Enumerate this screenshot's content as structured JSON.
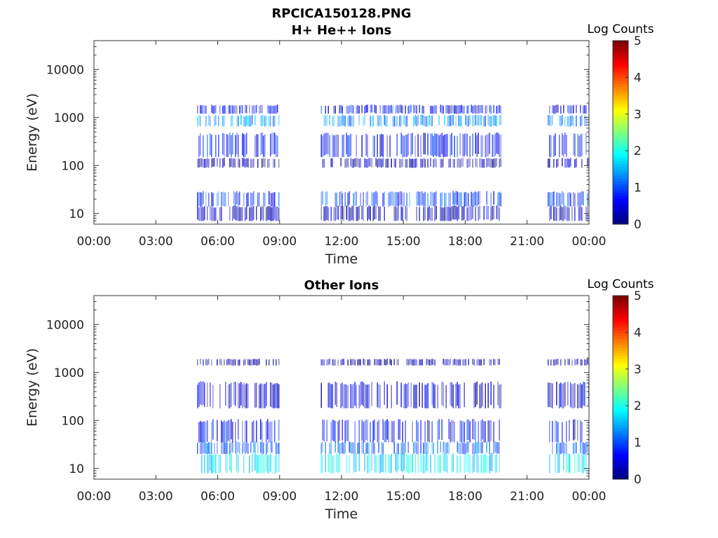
{
  "figure_title": "RPCICA150128.PNG",
  "chart_data": [
    {
      "type": "heatmap",
      "title": "H+ He++ Ions",
      "xlabel": "Time",
      "ylabel": "Energy (eV)",
      "x_tick_labels": [
        "00:00",
        "03:00",
        "06:00",
        "09:00",
        "12:00",
        "15:00",
        "18:00",
        "21:00",
        "00:00"
      ],
      "x_range_hours": [
        0,
        24
      ],
      "y_scale": "log",
      "y_range": [
        6,
        40000
      ],
      "y_tick_labels": [
        "10",
        "100",
        "1000",
        "10000"
      ],
      "colorbar": {
        "label": "Log Counts",
        "range": [
          0,
          5
        ],
        "tick_labels": [
          "0",
          "1",
          "2",
          "3",
          "4",
          "5"
        ],
        "colormap": "jet"
      },
      "data_intervals_hours": [
        [
          5.0,
          9.0
        ],
        [
          11.0,
          19.75
        ],
        [
          22.0,
          24.0
        ]
      ],
      "bands": [
        {
          "e_min": 14,
          "e_max": 28,
          "level": 0.9
        },
        {
          "e_min": 7,
          "e_max": 14,
          "level": 0.3
        },
        {
          "e_min": 650,
          "e_max": 1100,
          "level": 1.3
        },
        {
          "e_min": 1200,
          "e_max": 1800,
          "level": 0.6
        },
        {
          "e_min": 150,
          "e_max": 450,
          "level": 0.7
        },
        {
          "e_min": 90,
          "e_max": 140,
          "level": 0.2
        }
      ]
    },
    {
      "type": "heatmap",
      "title": "Other Ions",
      "xlabel": "Time",
      "ylabel": "Energy (eV)",
      "x_tick_labels": [
        "00:00",
        "03:00",
        "06:00",
        "09:00",
        "12:00",
        "15:00",
        "18:00",
        "21:00",
        "00:00"
      ],
      "x_range_hours": [
        0,
        24
      ],
      "y_scale": "log",
      "y_range": [
        6,
        40000
      ],
      "y_tick_labels": [
        "10",
        "100",
        "1000",
        "10000"
      ],
      "colorbar": {
        "label": "Log Counts",
        "range": [
          0,
          5
        ],
        "tick_labels": [
          "0",
          "1",
          "2",
          "3",
          "4",
          "5"
        ],
        "colormap": "jet"
      },
      "data_intervals_hours": [
        [
          5.0,
          9.0
        ],
        [
          11.0,
          19.75
        ],
        [
          22.0,
          24.0
        ]
      ],
      "bands": [
        {
          "e_min": 8,
          "e_max": 20,
          "level": 1.8
        },
        {
          "e_min": 20,
          "e_max": 35,
          "level": 1.1
        },
        {
          "e_min": 35,
          "e_max": 100,
          "level": 0.6
        },
        {
          "e_min": 180,
          "e_max": 600,
          "level": 0.4
        },
        {
          "e_min": 1400,
          "e_max": 1900,
          "level": 0.2
        }
      ]
    }
  ]
}
